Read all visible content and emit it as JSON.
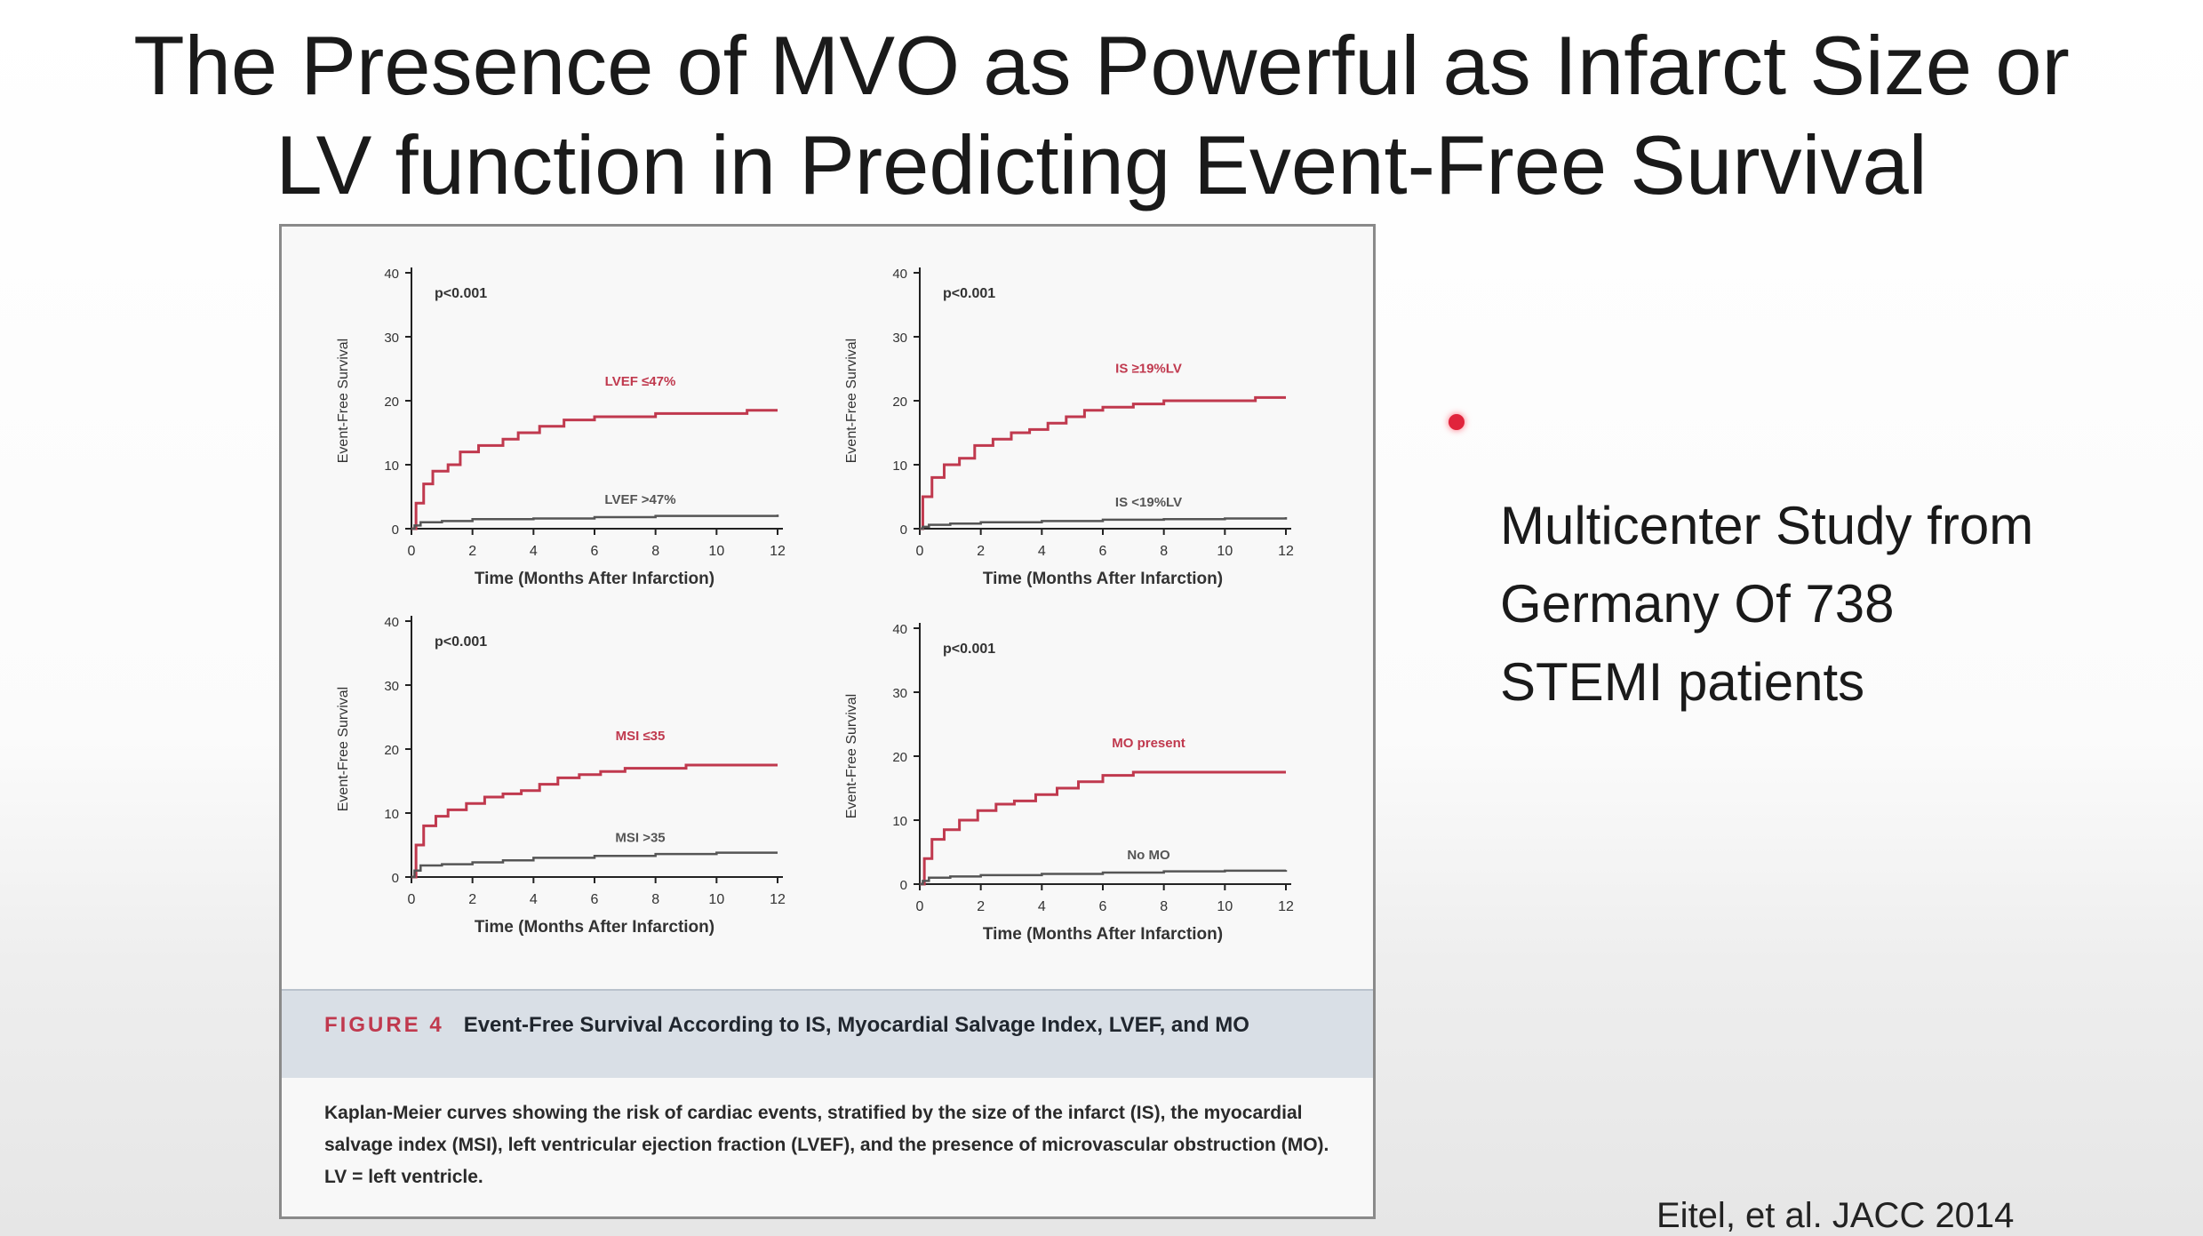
{
  "slide": {
    "title_line1": "The Presence of MVO as Powerful as Infarct Size or",
    "title_line2": "LV function in Predicting Event-Free Survival",
    "side_line1": "Multicenter Study from",
    "side_line2": "Germany  Of 738",
    "side_line3": "STEMI patients",
    "citation": "Eitel, et al. JACC 2014",
    "laser_pointer_color": "#e0243c"
  },
  "figure": {
    "label": "FIGURE 4",
    "title": "Event-Free Survival According to IS, Myocardial Salvage Index, LVEF, and MO",
    "caption": "Kaplan-Meier curves showing the risk of cardiac events, stratified by the size of the infarct (IS), the myocardial salvage index (MSI), left ventricular ejection fraction (LVEF), and the presence of microvascular obstruction (MO). LV = left ventricle."
  },
  "colors": {
    "high_risk": "#c0394e",
    "low_risk": "#555555",
    "axis": "#222222"
  },
  "chart_data": [
    {
      "type": "line",
      "panel": "top-left",
      "pvalue": "p<0.001",
      "xlabel": "Time (Months After Infarction)",
      "ylabel": "Event-Free Survival",
      "xlim": [
        0,
        12
      ],
      "ylim": [
        0,
        40
      ],
      "xticks": [
        0,
        2,
        4,
        6,
        8,
        10,
        12
      ],
      "yticks": [
        0,
        10,
        20,
        30,
        40
      ],
      "series": [
        {
          "name": "LVEF ≤47%",
          "risk": "high",
          "x": [
            0,
            0.15,
            0.4,
            0.7,
            1.2,
            1.6,
            2.2,
            2.6,
            3.0,
            3.5,
            4.2,
            5.0,
            6.0,
            7.0,
            8.0,
            9.0,
            10.0,
            11.0,
            12.0
          ],
          "y": [
            0,
            4,
            7,
            9,
            10,
            12,
            13,
            13,
            14,
            15,
            16,
            17,
            17.5,
            17.5,
            18,
            18,
            18,
            18.5,
            18.5
          ]
        },
        {
          "name": "LVEF >47%",
          "risk": "low",
          "x": [
            0,
            0.1,
            0.3,
            1.0,
            2.0,
            4.0,
            6.0,
            8.0,
            10.0,
            12.0
          ],
          "y": [
            0,
            0.5,
            1,
            1.2,
            1.5,
            1.6,
            1.8,
            2.0,
            2.0,
            2.2
          ]
        }
      ]
    },
    {
      "type": "line",
      "panel": "top-right",
      "pvalue": "p<0.001",
      "xlabel": "Time (Months After Infarction)",
      "ylabel": "Event-Free Survival",
      "xlim": [
        0,
        12
      ],
      "ylim": [
        0,
        40
      ],
      "xticks": [
        0,
        2,
        4,
        6,
        8,
        10,
        12
      ],
      "yticks": [
        0,
        10,
        20,
        30,
        40
      ],
      "series": [
        {
          "name": "IS ≥19%LV",
          "risk": "high",
          "x": [
            0,
            0.1,
            0.4,
            0.8,
            1.3,
            1.8,
            2.4,
            3.0,
            3.6,
            4.2,
            4.8,
            5.4,
            6.0,
            7.0,
            8.0,
            9.0,
            10.0,
            11.0,
            12.0
          ],
          "y": [
            0,
            5,
            8,
            10,
            11,
            13,
            14,
            15,
            15.5,
            16.5,
            17.5,
            18.5,
            19,
            19.5,
            20,
            20,
            20,
            20.5,
            20.5
          ]
        },
        {
          "name": "IS <19%LV",
          "risk": "low",
          "x": [
            0,
            0.1,
            0.3,
            1.0,
            2.0,
            4.0,
            6.0,
            8.0,
            10.0,
            12.0
          ],
          "y": [
            0,
            0.3,
            0.6,
            0.8,
            1.0,
            1.2,
            1.4,
            1.5,
            1.6,
            1.8
          ]
        }
      ]
    },
    {
      "type": "line",
      "panel": "bottom-left",
      "pvalue": "p<0.001",
      "xlabel": "Time (Months After Infarction)",
      "ylabel": "Event-Free Survival",
      "xlim": [
        0,
        12
      ],
      "ylim": [
        0,
        40
      ],
      "xticks": [
        0,
        2,
        4,
        6,
        8,
        10,
        12
      ],
      "yticks": [
        0,
        10,
        20,
        30,
        40
      ],
      "series": [
        {
          "name": "MSI ≤35",
          "risk": "high",
          "x": [
            0,
            0.15,
            0.4,
            0.8,
            1.2,
            1.8,
            2.4,
            3.0,
            3.6,
            4.2,
            4.8,
            5.5,
            6.2,
            7.0,
            8.0,
            9.0,
            10.0,
            11.0,
            12.0
          ],
          "y": [
            0,
            5,
            8,
            9.5,
            10.5,
            11.5,
            12.5,
            13,
            13.5,
            14.5,
            15.5,
            16,
            16.5,
            17,
            17,
            17.5,
            17.5,
            17.5,
            17.5
          ]
        },
        {
          "name": "MSI >35",
          "risk": "low",
          "x": [
            0,
            0.1,
            0.3,
            1.0,
            2.0,
            3.0,
            4.0,
            6.0,
            8.0,
            10.0,
            12.0
          ],
          "y": [
            0,
            1,
            1.8,
            2.0,
            2.3,
            2.6,
            3.0,
            3.3,
            3.6,
            3.8,
            3.8
          ]
        }
      ]
    },
    {
      "type": "line",
      "panel": "bottom-right",
      "pvalue": "p<0.001",
      "xlabel": "Time (Months After Infarction)",
      "ylabel": "Event-Free Survival",
      "xlim": [
        0,
        12
      ],
      "ylim": [
        0,
        40
      ],
      "xticks": [
        0,
        2,
        4,
        6,
        8,
        10,
        12
      ],
      "yticks": [
        0,
        10,
        20,
        30,
        40
      ],
      "series": [
        {
          "name": "MO present",
          "risk": "high",
          "x": [
            0,
            0.15,
            0.4,
            0.8,
            1.3,
            1.9,
            2.5,
            3.1,
            3.8,
            4.5,
            5.2,
            6.0,
            7.0,
            8.0,
            9.0,
            10.0,
            11.0,
            12.0
          ],
          "y": [
            0,
            4,
            7,
            8.5,
            10,
            11.5,
            12.5,
            13,
            14,
            15,
            16,
            17,
            17.5,
            17.5,
            17.5,
            17.5,
            17.5,
            17.5
          ]
        },
        {
          "name": "No MO",
          "risk": "low",
          "x": [
            0,
            0.1,
            0.3,
            1.0,
            2.0,
            4.0,
            6.0,
            8.0,
            10.0,
            12.0
          ],
          "y": [
            0,
            0.5,
            1.0,
            1.2,
            1.4,
            1.6,
            1.8,
            2.0,
            2.1,
            2.2
          ]
        }
      ]
    }
  ]
}
